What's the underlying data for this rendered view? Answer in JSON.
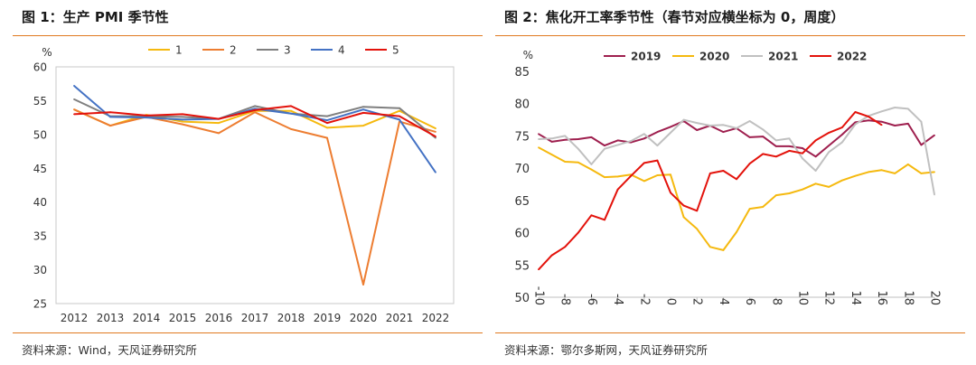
{
  "panels": [
    {
      "title": "图 1：生产 PMI 季节性",
      "source": "资料来源：Wind，天风证券研究所",
      "chart_data": {
        "type": "line",
        "ylabel": "%",
        "xlabel": "",
        "ylim": [
          25,
          60
        ],
        "yticks": [
          25,
          30,
          35,
          40,
          45,
          50,
          55,
          60
        ],
        "categories": [
          "2012",
          "2013",
          "2014",
          "2015",
          "2016",
          "2017",
          "2018",
          "2019",
          "2020",
          "2021",
          "2022"
        ],
        "grid": "none",
        "legend": "top",
        "series": [
          {
            "name": "1",
            "color": "#f5b90f",
            "values": [
              53.7,
              51.3,
              52.9,
              51.9,
              51.7,
              53.5,
              53.5,
              51.0,
              51.3,
              53.5,
              50.9
            ]
          },
          {
            "name": "2",
            "color": "#ed7d31",
            "values": [
              53.7,
              51.3,
              52.6,
              51.5,
              50.2,
              53.3,
              50.8,
              49.5,
              27.8,
              51.9,
              50.4
            ]
          },
          {
            "name": "3",
            "color": "#7f7f7f",
            "values": [
              55.2,
              52.7,
              52.7,
              52.6,
              52.3,
              54.2,
              53.1,
              52.7,
              54.1,
              53.9,
              49.5
            ]
          },
          {
            "name": "4",
            "color": "#4472c4",
            "values": [
              57.2,
              52.6,
              52.5,
              52.2,
              52.3,
              53.8,
              53.1,
              52.1,
              53.7,
              52.2,
              44.4
            ]
          },
          {
            "name": "5",
            "color": "#e3120b",
            "values": [
              53.0,
              53.3,
              52.8,
              53.0,
              52.3,
              53.6,
              54.2,
              51.7,
              53.2,
              52.7,
              49.7
            ]
          }
        ]
      }
    },
    {
      "title": "图 2：焦化开工率季节性（春节对应横坐标为 0，周度）",
      "source": "资料来源：鄂尔多斯网，天风证券研究所",
      "chart_data": {
        "type": "line",
        "ylabel": "%",
        "xlabel": "",
        "ylim": [
          50,
          85
        ],
        "yticks": [
          50,
          55,
          60,
          65,
          70,
          75,
          80,
          85
        ],
        "xlim": [
          -10,
          20
        ],
        "xticks": [
          -10,
          -8,
          -6,
          -4,
          -2,
          0,
          2,
          4,
          6,
          8,
          10,
          12,
          14,
          16,
          18,
          20
        ],
        "grid": "none",
        "legend": "top",
        "series": [
          {
            "name": "2019",
            "color": "#9e1f4e",
            "x": [
              -10,
              -9,
              -8,
              -7,
              -6,
              -5,
              -4,
              -3,
              -2,
              -1,
              0,
              1,
              2,
              3,
              4,
              5,
              6,
              7,
              8,
              9,
              10,
              11,
              12,
              13,
              14,
              15,
              16,
              17,
              18,
              19,
              20
            ],
            "y": [
              75.3,
              74.1,
              74.4,
              74.5,
              74.8,
              73.5,
              74.3,
              74.0,
              74.6,
              75.6,
              76.4,
              77.3,
              75.9,
              76.6,
              75.6,
              76.2,
              74.8,
              74.9,
              73.4,
              73.4,
              73.1,
              71.8,
              73.5,
              75.2,
              77.1,
              77.4,
              77.2,
              76.6,
              76.9,
              73.6,
              75.1
            ]
          },
          {
            "name": "2020",
            "color": "#f5b90f",
            "x": [
              -10,
              -9,
              -8,
              -7,
              -6,
              -5,
              -4,
              -3,
              -2,
              -1,
              0,
              1,
              2,
              3,
              4,
              5,
              6,
              7,
              8,
              9,
              10,
              11,
              12,
              13,
              14,
              15,
              16,
              17,
              18,
              19,
              20
            ],
            "y": [
              73.2,
              72.1,
              71.0,
              70.9,
              69.8,
              68.6,
              68.7,
              69.0,
              68.0,
              68.9,
              69.0,
              62.4,
              60.6,
              57.8,
              57.3,
              60.1,
              63.7,
              64.0,
              65.8,
              66.1,
              66.7,
              67.6,
              67.1,
              68.1,
              68.8,
              69.4,
              69.7,
              69.2,
              70.6,
              69.2,
              69.4
            ]
          },
          {
            "name": "2021",
            "color": "#c0c0c0",
            "x": [
              -10,
              -9,
              -8,
              -7,
              -6,
              -5,
              -4,
              -3,
              -2,
              -1,
              0,
              1,
              2,
              3,
              4,
              5,
              6,
              7,
              8,
              9,
              10,
              11,
              12,
              13,
              14,
              15,
              16,
              17,
              18,
              19,
              20
            ],
            "y": [
              74.5,
              74.6,
              75.0,
              73.0,
              70.6,
              73.0,
              73.6,
              74.2,
              75.3,
              73.5,
              75.5,
              77.5,
              77.0,
              76.6,
              76.7,
              76.2,
              77.3,
              76.0,
              74.3,
              74.6,
              71.5,
              69.6,
              72.5,
              74.0,
              76.8,
              78.1,
              78.8,
              79.4,
              79.2,
              77.2,
              65.9
            ]
          },
          {
            "name": "2022",
            "color": "#e3120b",
            "x": [
              -10,
              -9,
              -8,
              -7,
              -6,
              -5,
              -4,
              -3,
              -2,
              -1,
              0,
              1,
              2,
              3,
              4,
              5,
              6,
              7,
              8,
              9,
              10,
              11,
              12,
              13,
              14,
              15,
              16
            ],
            "y": [
              54.3,
              56.5,
              57.8,
              60.0,
              62.7,
              62.0,
              66.7,
              68.8,
              70.8,
              71.2,
              66.2,
              64.2,
              63.4,
              69.2,
              69.6,
              68.3,
              70.7,
              72.2,
              71.8,
              72.7,
              72.3,
              74.3,
              75.5,
              76.3,
              78.7,
              78.0,
              76.7
            ]
          }
        ]
      }
    }
  ]
}
